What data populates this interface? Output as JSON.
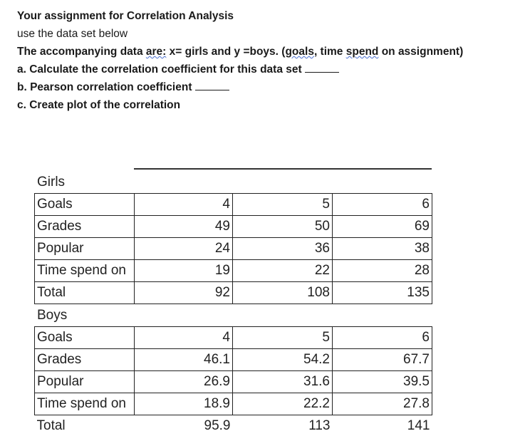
{
  "assignment": {
    "title": "Your assignment for Correlation Analysis",
    "subtitle": "use the data set below",
    "line3_prefix": "The accompanying data ",
    "line3_are": "are:",
    "line3_mid": " x= girls and y =boys. (",
    "line3_goals": "goals",
    "line3_mid2": ", time ",
    "line3_spend": "spend",
    "line3_suffix": " on assignment)",
    "item_a": "a. Calculate the correlation coefficient for this data set",
    "item_b": "b. Pearson correlation coefficient",
    "item_c": "c. Create plot of the correlation"
  },
  "girls": {
    "heading": "Girls",
    "rows": [
      {
        "label": "Goals",
        "values": [
          "4",
          "5",
          "6"
        ]
      },
      {
        "label": "Grades",
        "values": [
          "49",
          "50",
          "69"
        ]
      },
      {
        "label": "Popular",
        "values": [
          "24",
          "36",
          "38"
        ]
      },
      {
        "label": "Time spend on",
        "values": [
          "19",
          "22",
          "28"
        ]
      },
      {
        "label": "Total",
        "values": [
          "92",
          "108",
          "135"
        ]
      }
    ]
  },
  "boys": {
    "heading": "Boys",
    "rows": [
      {
        "label": "Goals",
        "values": [
          "4",
          "5",
          "6"
        ]
      },
      {
        "label": "Grades",
        "values": [
          "46.1",
          "54.2",
          "67.7"
        ]
      },
      {
        "label": "Popular",
        "values": [
          "26.9",
          "31.6",
          "39.5"
        ]
      },
      {
        "label": "Time spend on",
        "values": [
          "18.9",
          "22.2",
          "27.8"
        ]
      },
      {
        "label": "Total",
        "values": [
          "95.9",
          "113",
          "141"
        ]
      }
    ]
  }
}
